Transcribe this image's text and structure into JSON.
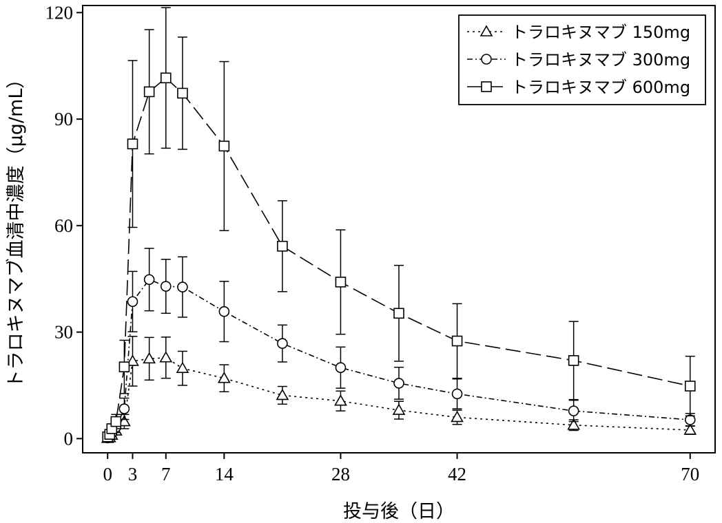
{
  "chart_data": {
    "type": "line",
    "xlabel": "投与後（日）",
    "ylabel": "トラロキヌマブ血清中濃度（μg/mL）",
    "xlim": [
      -3,
      73
    ],
    "ylim": [
      -4,
      122
    ],
    "x_ticks": [
      0,
      3,
      7,
      14,
      28,
      42,
      70
    ],
    "y_ticks": [
      0,
      30,
      60,
      90,
      120
    ],
    "grid": false,
    "legend_position": "top-right",
    "series": [
      {
        "name": "トラロキヌマブ 150mg",
        "marker": "triangle",
        "dash": "dotted",
        "x": [
          0,
          0.25,
          0.5,
          1,
          2,
          3,
          5,
          7,
          9,
          14,
          21,
          28,
          35,
          42,
          56,
          70
        ],
        "y": [
          0.1,
          0.3,
          1.0,
          2.2,
          4.8,
          21.8,
          22.5,
          22.8,
          19.8,
          17.0,
          12.2,
          10.6,
          8.0,
          6.0,
          3.8,
          2.4
        ],
        "error": [
          0,
          0.2,
          0.5,
          1.0,
          2.0,
          7.0,
          6.0,
          5.8,
          4.8,
          3.8,
          2.5,
          2.8,
          2.5,
          2.0,
          1.5,
          1.2
        ]
      },
      {
        "name": "トラロキヌマブ 300mg",
        "marker": "circle",
        "dash": "dash-dot",
        "x": [
          0,
          0.25,
          0.5,
          1,
          2,
          3,
          5,
          7,
          9,
          14,
          21,
          28,
          35,
          42,
          56,
          70
        ],
        "y": [
          0.2,
          0.6,
          1.6,
          3.2,
          8.4,
          38.6,
          44.8,
          42.9,
          42.7,
          35.8,
          26.8,
          20.0,
          15.6,
          12.6,
          7.8,
          5.3
        ],
        "error": [
          0,
          0.3,
          0.8,
          1.5,
          3.0,
          8.5,
          8.8,
          7.6,
          8.5,
          8.5,
          5.2,
          5.8,
          4.5,
          4.2,
          3.0,
          1.8
        ]
      },
      {
        "name": "トラロキヌマブ 600mg",
        "marker": "square",
        "dash": "long-dash",
        "x": [
          0,
          0.25,
          0.5,
          1,
          2,
          3,
          5,
          7,
          9,
          14,
          21,
          28,
          35,
          42,
          56,
          70
        ],
        "y": [
          0.5,
          1.2,
          2.8,
          4.8,
          20.2,
          83.0,
          97.7,
          101.6,
          97.3,
          82.4,
          54.2,
          44.1,
          35.3,
          27.5,
          22.0,
          14.8
        ],
        "error": [
          0,
          0.6,
          1.2,
          2.0,
          7.5,
          23.5,
          17.5,
          19.8,
          15.8,
          23.8,
          12.8,
          14.7,
          13.5,
          10.5,
          11.0,
          8.4
        ]
      }
    ]
  }
}
